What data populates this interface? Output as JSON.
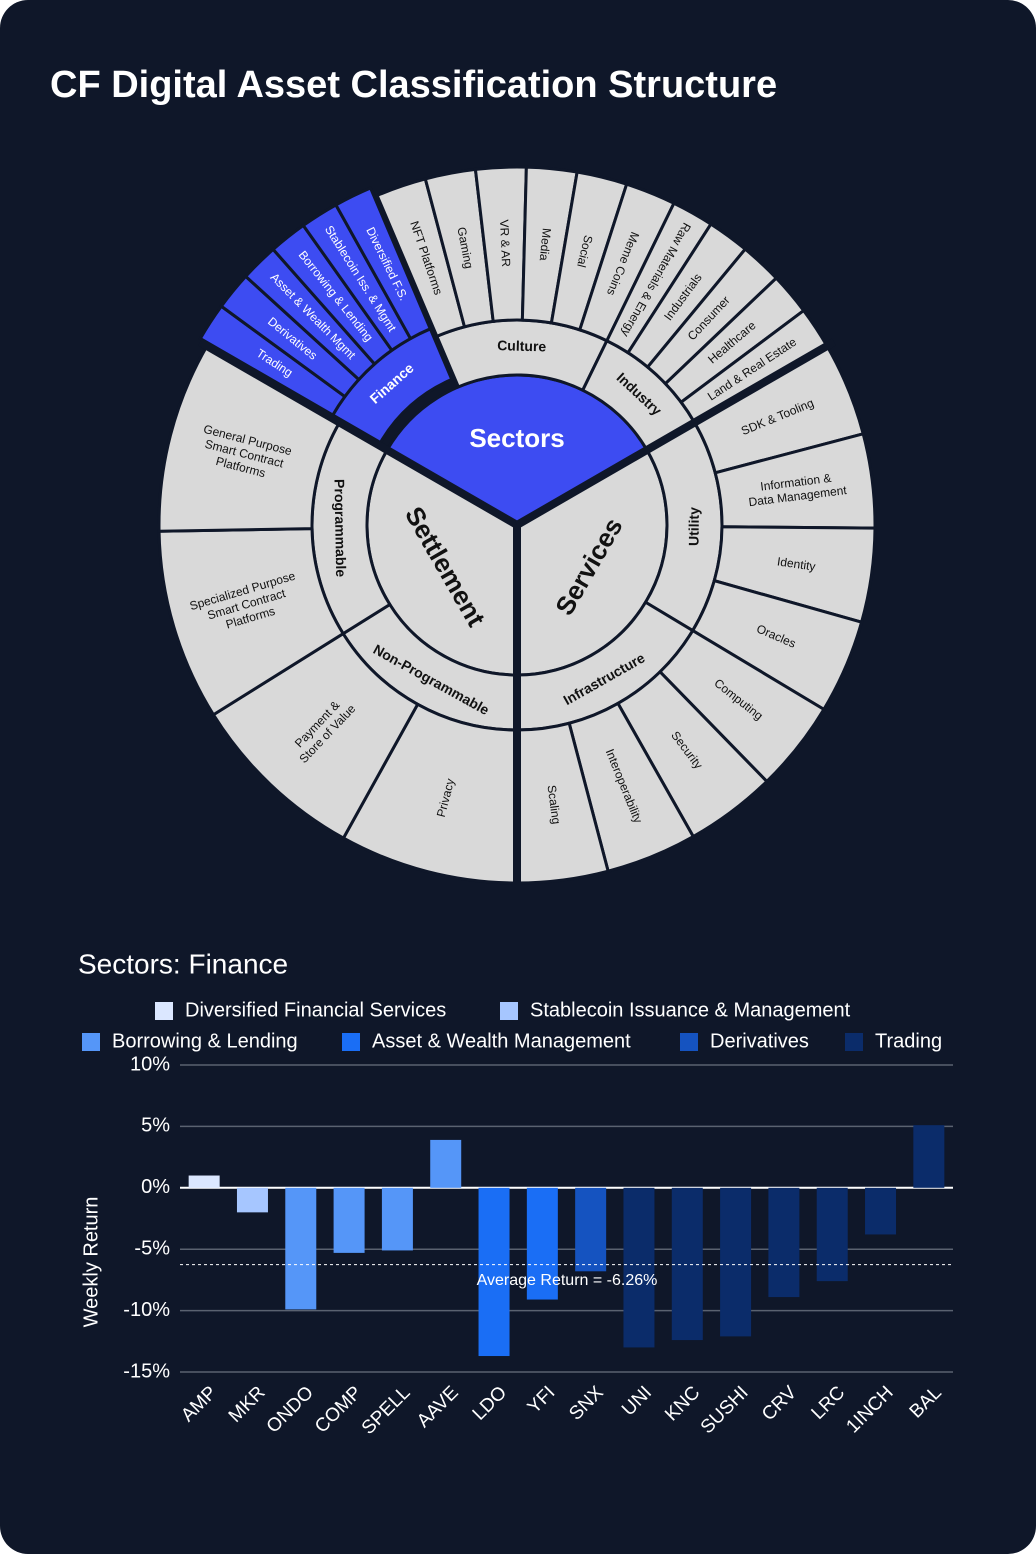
{
  "title": "CF Digital Asset Classification Structure",
  "diagram": {
    "sectors": [
      {
        "label": "Sectors",
        "children": [
          {
            "label": "Finance",
            "children": [
              {
                "label": [
                  "Trading"
                ]
              },
              {
                "label": [
                  "Derivatives"
                ]
              },
              {
                "label": [
                  "Asset & Wealth Mgmt"
                ]
              },
              {
                "label": [
                  "Borrowing & Lending"
                ]
              },
              {
                "label": [
                  "Stablecoin Iss. & Mgmt"
                ]
              },
              {
                "label": [
                  "Diversified F.S."
                ]
              }
            ]
          },
          {
            "label": "Culture",
            "children": [
              {
                "label": [
                  "NFT Platforms"
                ]
              },
              {
                "label": [
                  "Gaming"
                ]
              },
              {
                "label": [
                  "VR & AR"
                ]
              },
              {
                "label": [
                  "Media"
                ]
              },
              {
                "label": [
                  "Social"
                ]
              },
              {
                "label": [
                  "Meme Coins"
                ]
              }
            ]
          },
          {
            "label": "Industry",
            "children": [
              {
                "label": [
                  "Raw Materials & Energy"
                ]
              },
              {
                "label": [
                  "Industrials"
                ]
              },
              {
                "label": [
                  "Consumer"
                ]
              },
              {
                "label": [
                  "Healthcare"
                ]
              },
              {
                "label": [
                  "Land & Real Estate"
                ]
              }
            ]
          }
        ]
      },
      {
        "label": "Services",
        "children": [
          {
            "label": "Utility",
            "children": [
              {
                "label": [
                  "SDK & Tooling"
                ]
              },
              {
                "label": [
                  "Information &",
                  "Data Management"
                ]
              },
              {
                "label": [
                  "Identity"
                ]
              },
              {
                "label": [
                  "Oracles"
                ]
              }
            ]
          },
          {
            "label": "Infrastructure",
            "children": [
              {
                "label": [
                  "Computing"
                ]
              },
              {
                "label": [
                  "Security"
                ]
              },
              {
                "label": [
                  "Interoperability"
                ]
              },
              {
                "label": [
                  "Scaling"
                ]
              }
            ]
          }
        ]
      },
      {
        "label": "Settlement",
        "children": [
          {
            "label": "Non-Programmable",
            "children": [
              {
                "label": [
                  "Privacy"
                ]
              },
              {
                "label": [
                  "Payment &",
                  "Store of Value"
                ]
              }
            ]
          },
          {
            "label": "Programmable",
            "children": [
              {
                "label": [
                  "Specialized Purpose",
                  "Smart Contract",
                  "Platforms"
                ]
              },
              {
                "label": [
                  "General Purpose",
                  "Smart Contract",
                  "Platforms"
                ]
              }
            ]
          }
        ]
      }
    ]
  },
  "chart_data": {
    "type": "bar",
    "title": "Sectors: Finance",
    "y_label": "Weekly Return",
    "categories": [
      "AMP",
      "MKR",
      "ONDO",
      "COMP",
      "SPELL",
      "AAVE",
      "LDO",
      "YFI",
      "SNX",
      "UNI",
      "KNC",
      "SUSHI",
      "CRV",
      "LRC",
      "1INCH",
      "BAL"
    ],
    "series": [
      {
        "name": "Diversified Financial Services",
        "color": "#dbe7ff",
        "values": [
          1.0,
          null,
          null,
          null,
          null,
          null,
          null,
          null,
          null,
          null,
          null,
          null,
          null,
          null,
          null,
          null
        ]
      },
      {
        "name": "Stablecoin Issuance & Management",
        "color": "#a6c6ff",
        "values": [
          null,
          -2.0,
          null,
          null,
          null,
          null,
          null,
          null,
          null,
          null,
          null,
          null,
          null,
          null,
          null,
          null
        ]
      },
      {
        "name": "Borrowing & Lending",
        "color": "#5596f8",
        "values": [
          null,
          null,
          -9.9,
          -5.3,
          -5.1,
          3.9,
          null,
          null,
          null,
          null,
          null,
          null,
          null,
          null,
          null,
          null
        ]
      },
      {
        "name": "Asset & Wealth Management",
        "color": "#1a6ef5",
        "values": [
          null,
          null,
          null,
          null,
          null,
          null,
          -13.7,
          -9.1,
          null,
          null,
          null,
          null,
          null,
          null,
          null,
          null
        ]
      },
      {
        "name": "Derivatives",
        "color": "#1553c0",
        "values": [
          null,
          null,
          null,
          null,
          null,
          null,
          null,
          null,
          -6.8,
          null,
          null,
          null,
          null,
          null,
          null,
          null
        ]
      },
      {
        "name": "Trading",
        "color": "#0b2c6a",
        "values": [
          null,
          null,
          null,
          null,
          null,
          null,
          null,
          null,
          null,
          -13.0,
          -12.4,
          -12.1,
          -8.9,
          -7.6,
          -3.8,
          5.1
        ]
      }
    ],
    "reference_line": {
      "value": -6.26,
      "label": "Average Return = -6.26%"
    },
    "ylim": [
      -15,
      10
    ],
    "yticks": [
      {
        "value": -15,
        "label": "-15%"
      },
      {
        "value": -10,
        "label": "-10%"
      },
      {
        "value": -5,
        "label": "-5%"
      },
      {
        "value": 0,
        "label": "0%"
      },
      {
        "value": 5,
        "label": "5%"
      },
      {
        "value": 10,
        "label": "10%"
      }
    ],
    "grid": true
  }
}
